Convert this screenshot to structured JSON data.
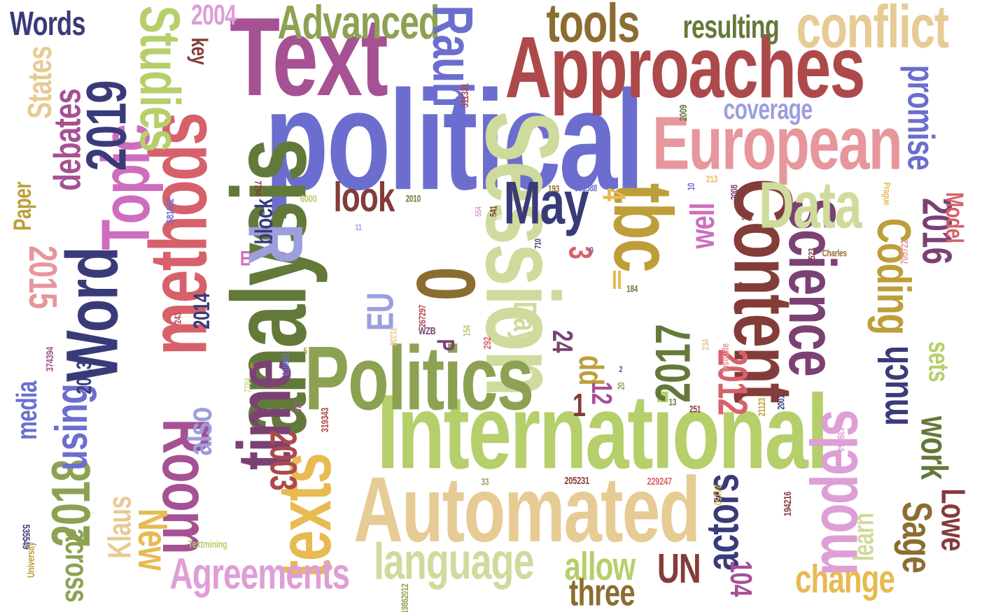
{
  "palette": {
    "blue": "#6b6ecf",
    "navy": "#393b79",
    "lightblue": "#9c9ede",
    "olive": "#637939",
    "green": "#8ca252",
    "lime": "#b5cf6b",
    "sage": "#cedb9c",
    "brown": "#8c6d31",
    "gold": "#bd9e39",
    "yellow": "#e7ba52",
    "tan": "#e7cb94",
    "maroon": "#843c39",
    "red": "#ad494a",
    "rose": "#d6616b",
    "pink": "#e7969c",
    "plum": "#7b4173",
    "purple": "#a55194",
    "orchid": "#ce6dbd",
    "lilac": "#de9ed6"
  },
  "words": [
    {
      "key": "political",
      "text": "political",
      "color": "blue"
    },
    {
      "key": "analysis",
      "text": "analysis",
      "color": "olive"
    },
    {
      "key": "session",
      "text": "Session",
      "color": "sage"
    },
    {
      "key": "text",
      "text": "Text",
      "color": "purple"
    },
    {
      "key": "international",
      "text": "International",
      "color": "lime"
    },
    {
      "key": "automated",
      "text": "Automated",
      "color": "tan"
    },
    {
      "key": "approaches",
      "text": "Approaches",
      "color": "red"
    },
    {
      "key": "politics",
      "text": "Politics",
      "color": "green"
    },
    {
      "key": "content",
      "text": "Content",
      "color": "maroon"
    },
    {
      "key": "methods",
      "text": "methods",
      "color": "rose"
    },
    {
      "key": "texts",
      "text": "texts",
      "color": "yellow"
    },
    {
      "key": "european",
      "text": "European",
      "color": "pink"
    },
    {
      "key": "tbc",
      "text": "tbc",
      "color": "gold"
    },
    {
      "key": "science",
      "text": "Science",
      "color": "plum"
    },
    {
      "key": "models",
      "text": "models",
      "color": "lilac"
    },
    {
      "key": "time",
      "text": "time",
      "color": "plum"
    },
    {
      "key": "word",
      "text": "Word",
      "color": "navy"
    },
    {
      "key": "r",
      "text": "R",
      "color": "lightblue"
    },
    {
      "key": "zero",
      "text": "0",
      "color": "brown"
    },
    {
      "key": "room",
      "text": "Room",
      "color": "purple"
    },
    {
      "key": "data",
      "text": "Data",
      "color": "sage"
    },
    {
      "key": "topic",
      "text": "Topic",
      "color": "orchid"
    },
    {
      "key": "studies",
      "text": "Studies",
      "color": "lime"
    },
    {
      "key": "conflict",
      "text": "conflict",
      "color": "tan"
    },
    {
      "key": "tools",
      "text": "tools",
      "color": "brown"
    },
    {
      "key": "advanced",
      "text": "Advanced",
      "color": "green"
    },
    {
      "key": "rauh",
      "text": "Rauh",
      "color": "blue"
    },
    {
      "key": "may",
      "text": "May",
      "color": "navy"
    },
    {
      "key": "language",
      "text": "language",
      "color": "sage"
    },
    {
      "key": "agreements",
      "text": "Agreements",
      "color": "lilac"
    },
    {
      "key": "y2019",
      "text": "2019",
      "color": "navy"
    },
    {
      "key": "debates",
      "text": "debates",
      "color": "purple"
    },
    {
      "key": "states",
      "text": "States",
      "color": "tan"
    },
    {
      "key": "look",
      "text": "look",
      "color": "maroon"
    },
    {
      "key": "promise",
      "text": "promise",
      "color": "blue"
    },
    {
      "key": "coding",
      "text": "Coding",
      "color": "gold"
    },
    {
      "key": "y2016",
      "text": "2016",
      "color": "plum"
    },
    {
      "key": "y2017",
      "text": "2017",
      "color": "olive"
    },
    {
      "key": "y2012",
      "text": "2012",
      "color": "rose"
    },
    {
      "key": "y2015",
      "text": "2015",
      "color": "pink"
    },
    {
      "key": "y2018",
      "text": "2018",
      "color": "green"
    },
    {
      "key": "y2003",
      "text": "2003",
      "color": "red"
    },
    {
      "key": "using",
      "text": "using",
      "color": "blue"
    },
    {
      "key": "new",
      "text": "New",
      "color": "yellow"
    },
    {
      "key": "actors",
      "text": "actors",
      "color": "navy"
    },
    {
      "key": "much",
      "text": "much",
      "color": "navy"
    },
    {
      "key": "work",
      "text": "work",
      "color": "olive"
    },
    {
      "key": "sage",
      "text": "Sage",
      "color": "brown"
    },
    {
      "key": "lowe",
      "text": "Lowe",
      "color": "maroon"
    },
    {
      "key": "change",
      "text": "change",
      "color": "yellow"
    },
    {
      "key": "allow",
      "text": "allow",
      "color": "lime"
    },
    {
      "key": "un",
      "text": "UN",
      "color": "maroon"
    },
    {
      "key": "three",
      "text": "three",
      "color": "brown"
    },
    {
      "key": "across",
      "text": "across",
      "color": "green"
    },
    {
      "key": "media",
      "text": "media",
      "color": "blue"
    },
    {
      "key": "klaus",
      "text": "Klaus",
      "color": "tan"
    },
    {
      "key": "also",
      "text": "also",
      "color": "lightblue"
    },
    {
      "key": "eu",
      "text": "EU",
      "color": "lightblue"
    },
    {
      "key": "day",
      "text": "Day",
      "color": "sage"
    },
    {
      "key": "pp",
      "text": "pp",
      "color": "gold"
    },
    {
      "key": "well",
      "text": "well",
      "color": "orchid"
    },
    {
      "key": "sets",
      "text": "sets",
      "color": "lime"
    },
    {
      "key": "learn",
      "text": "learn",
      "color": "sage"
    },
    {
      "key": "block",
      "text": "block",
      "color": "navy"
    },
    {
      "key": "paper",
      "text": "Paper",
      "color": "gold"
    },
    {
      "key": "words",
      "text": "Words",
      "color": "navy"
    },
    {
      "key": "key",
      "text": "key",
      "color": "maroon"
    },
    {
      "key": "y2004",
      "text": "2004",
      "color": "lilac"
    },
    {
      "key": "resulting",
      "text": "resulting",
      "color": "olive"
    },
    {
      "key": "coverage",
      "text": "coverage",
      "color": "lightblue"
    },
    {
      "key": "model",
      "text": "Model",
      "color": "rose"
    },
    {
      "key": "y2014",
      "text": "2014",
      "color": "navy"
    },
    {
      "key": "y2013",
      "text": "2013",
      "color": "navy"
    },
    {
      "key": "n104",
      "text": "104",
      "color": "purple"
    },
    {
      "key": "n24",
      "text": "24",
      "color": "plum"
    },
    {
      "key": "n12",
      "text": "12",
      "color": "purple"
    },
    {
      "key": "n1",
      "text": "1",
      "color": "maroon"
    },
    {
      "key": "n3",
      "text": "3",
      "color": "rose"
    },
    {
      "key": "n4",
      "text": "4",
      "color": "yellow"
    },
    {
      "key": "p",
      "text": "P",
      "color": "plum"
    },
    {
      "key": "ii",
      "text": "II",
      "color": "yellow"
    },
    {
      "key": "e",
      "text": "E",
      "color": "orchid"
    },
    {
      "key": "n311331",
      "text": "311331",
      "color": "red"
    },
    {
      "key": "n2009",
      "text": "2009",
      "color": "olive"
    },
    {
      "key": "n7794",
      "text": "7794",
      "color": "maroon"
    },
    {
      "key": "n6000",
      "text": "6000",
      "color": "lime"
    },
    {
      "key": "n581602",
      "text": "581602",
      "color": "blue"
    },
    {
      "key": "n2010",
      "text": "2010",
      "color": "olive"
    },
    {
      "key": "n554",
      "text": "554",
      "color": "lilac"
    },
    {
      "key": "n541",
      "text": "541",
      "color": "maroon"
    },
    {
      "key": "dr",
      "text": "DR",
      "color": "sage"
    },
    {
      "key": "n193",
      "text": "193",
      "color": "brown"
    },
    {
      "key": "n561588",
      "text": "561588",
      "color": "blue"
    },
    {
      "key": "n10",
      "text": "10",
      "color": "blue"
    },
    {
      "key": "n213",
      "text": "213",
      "color": "yellow"
    },
    {
      "key": "n2008",
      "text": "2008",
      "color": "plum"
    },
    {
      "key": "prague",
      "text": "Prague",
      "color": "yellow"
    },
    {
      "key": "n972",
      "text": "972",
      "color": "maroon"
    },
    {
      "key": "n11",
      "text": "11",
      "color": "lightblue"
    },
    {
      "key": "n710",
      "text": "710",
      "color": "navy"
    },
    {
      "key": "n9",
      "text": "9",
      "color": "blue"
    },
    {
      "key": "n184",
      "text": "184",
      "color": "olive"
    },
    {
      "key": "n523",
      "text": "523",
      "color": "maroon"
    },
    {
      "key": "charles",
      "text": "Charles",
      "color": "brown"
    },
    {
      "key": "n705722",
      "text": "705722",
      "color": "pink"
    },
    {
      "key": "n7",
      "text": "7",
      "color": "maroon"
    },
    {
      "key": "n267297",
      "text": "267297",
      "color": "red"
    },
    {
      "key": "n31336",
      "text": "31336",
      "color": "tan"
    },
    {
      "key": "n154",
      "text": "154",
      "color": "lime"
    },
    {
      "key": "n292",
      "text": "292",
      "color": "rose"
    },
    {
      "key": "wzb",
      "text": "WZB",
      "color": "plum"
    },
    {
      "key": "n243",
      "text": "243",
      "color": "red"
    },
    {
      "key": "n5",
      "text": "5",
      "color": "gold"
    },
    {
      "key": "n374394",
      "text": "374394",
      "color": "purple"
    },
    {
      "key": "n610631",
      "text": "610631",
      "color": "blue"
    },
    {
      "key": "n6",
      "text": "6",
      "color": "gold"
    },
    {
      "key": "n7784",
      "text": "7784",
      "color": "sage"
    },
    {
      "key": "n571",
      "text": "571",
      "color": "purple"
    },
    {
      "key": "n319343",
      "text": "319343",
      "color": "red"
    },
    {
      "key": "n2",
      "text": "2",
      "color": "plum"
    },
    {
      "key": "n20",
      "text": "20",
      "color": "green"
    },
    {
      "key": "n13",
      "text": "13",
      "color": "olive"
    },
    {
      "key": "n251",
      "text": "251",
      "color": "maroon"
    },
    {
      "key": "n234",
      "text": "234",
      "color": "tan"
    },
    {
      "key": "institute",
      "text": "Institute",
      "color": "pink"
    },
    {
      "key": "n2001",
      "text": "2001",
      "color": "navy"
    },
    {
      "key": "n21123",
      "text": "21123",
      "color": "gold"
    },
    {
      "key": "n439464",
      "text": "439464",
      "color": "lilac"
    },
    {
      "key": "n33",
      "text": "33",
      "color": "green"
    },
    {
      "key": "n205231",
      "text": "205231",
      "color": "maroon"
    },
    {
      "key": "n229247",
      "text": "229247",
      "color": "rose"
    },
    {
      "key": "n24150",
      "text": "24150",
      "color": "yellow"
    },
    {
      "key": "n194216",
      "text": "194216",
      "color": "maroon"
    },
    {
      "key": "n535549",
      "text": "535549",
      "color": "navy"
    },
    {
      "key": "university",
      "text": "University",
      "color": "gold"
    },
    {
      "key": "textmining",
      "text": "Textmining",
      "color": "lime"
    },
    {
      "key": "n19862012",
      "text": "19862012",
      "color": "green"
    }
  ]
}
